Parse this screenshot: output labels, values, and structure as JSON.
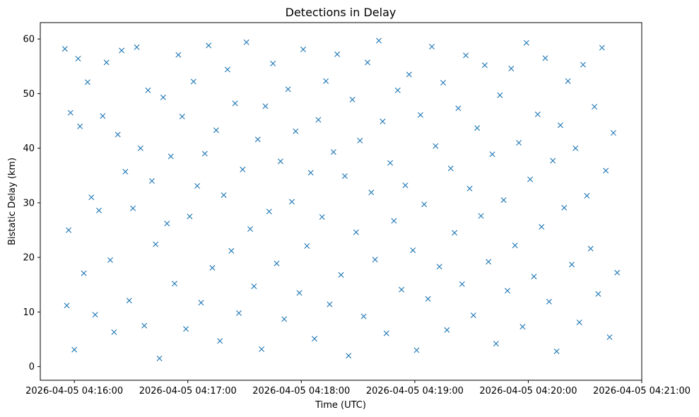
{
  "chart_data": {
    "type": "scatter",
    "title": "Detections in Delay",
    "xlabel": "Time (UTC)",
    "ylabel": "Bistatic Delay (km)",
    "x_type": "datetime",
    "xlim": [
      "2026-04-05 04:15:42",
      "2026-04-05 04:21:00"
    ],
    "ylim": [
      -2.5,
      63
    ],
    "x_ticks": [
      "2026-04-05 04:16:00",
      "2026-04-05 04:17:00",
      "2026-04-05 04:18:00",
      "2026-04-05 04:19:00",
      "2026-04-05 04:20:00",
      "2026-04-05 04:21:00"
    ],
    "y_ticks": [
      0,
      10,
      20,
      30,
      40,
      50,
      60
    ],
    "grid": false,
    "legend": null,
    "marker": "x",
    "color": "#1f77b4",
    "series": [
      {
        "x": [
          "2026-04-05 04:15:55",
          "2026-04-05 04:15:56",
          "2026-04-05 04:15:57",
          "2026-04-05 04:15:58",
          "2026-04-05 04:16:00",
          "2026-04-05 04:16:02",
          "2026-04-05 04:16:03",
          "2026-04-05 04:16:05",
          "2026-04-05 04:16:07",
          "2026-04-05 04:16:09",
          "2026-04-05 04:16:11",
          "2026-04-05 04:16:13",
          "2026-04-05 04:16:15",
          "2026-04-05 04:16:17",
          "2026-04-05 04:16:19",
          "2026-04-05 04:16:21",
          "2026-04-05 04:16:23",
          "2026-04-05 04:16:25",
          "2026-04-05 04:16:27",
          "2026-04-05 04:16:29",
          "2026-04-05 04:16:31",
          "2026-04-05 04:16:33",
          "2026-04-05 04:16:35",
          "2026-04-05 04:16:37",
          "2026-04-05 04:16:39",
          "2026-04-05 04:16:41",
          "2026-04-05 04:16:43",
          "2026-04-05 04:16:45",
          "2026-04-05 04:16:47",
          "2026-04-05 04:16:49",
          "2026-04-05 04:16:51",
          "2026-04-05 04:16:53",
          "2026-04-05 04:16:55",
          "2026-04-05 04:16:57",
          "2026-04-05 04:16:59",
          "2026-04-05 04:17:01",
          "2026-04-05 04:17:03",
          "2026-04-05 04:17:05",
          "2026-04-05 04:17:07",
          "2026-04-05 04:17:09",
          "2026-04-05 04:17:11",
          "2026-04-05 04:17:13",
          "2026-04-05 04:17:15",
          "2026-04-05 04:17:17",
          "2026-04-05 04:17:19",
          "2026-04-05 04:17:21",
          "2026-04-05 04:17:23",
          "2026-04-05 04:17:25",
          "2026-04-05 04:17:27",
          "2026-04-05 04:17:29",
          "2026-04-05 04:17:31",
          "2026-04-05 04:17:33",
          "2026-04-05 04:17:35",
          "2026-04-05 04:17:37",
          "2026-04-05 04:17:39",
          "2026-04-05 04:17:41",
          "2026-04-05 04:17:43",
          "2026-04-05 04:17:45",
          "2026-04-05 04:17:47",
          "2026-04-05 04:17:49",
          "2026-04-05 04:17:51",
          "2026-04-05 04:17:53",
          "2026-04-05 04:17:55",
          "2026-04-05 04:17:57",
          "2026-04-05 04:17:59",
          "2026-04-05 04:18:01",
          "2026-04-05 04:18:03",
          "2026-04-05 04:18:05",
          "2026-04-05 04:18:07",
          "2026-04-05 04:18:09",
          "2026-04-05 04:18:11",
          "2026-04-05 04:18:13",
          "2026-04-05 04:18:15",
          "2026-04-05 04:18:17",
          "2026-04-05 04:18:19",
          "2026-04-05 04:18:21",
          "2026-04-05 04:18:23",
          "2026-04-05 04:18:25",
          "2026-04-05 04:18:27",
          "2026-04-05 04:18:29",
          "2026-04-05 04:18:31",
          "2026-04-05 04:18:33",
          "2026-04-05 04:18:35",
          "2026-04-05 04:18:37",
          "2026-04-05 04:18:39",
          "2026-04-05 04:18:41",
          "2026-04-05 04:18:43",
          "2026-04-05 04:18:45",
          "2026-04-05 04:18:47",
          "2026-04-05 04:18:49",
          "2026-04-05 04:18:51",
          "2026-04-05 04:18:53",
          "2026-04-05 04:18:55",
          "2026-04-05 04:18:57",
          "2026-04-05 04:18:59",
          "2026-04-05 04:19:01",
          "2026-04-05 04:19:03",
          "2026-04-05 04:19:05",
          "2026-04-05 04:19:07",
          "2026-04-05 04:19:09",
          "2026-04-05 04:19:11",
          "2026-04-05 04:19:13",
          "2026-04-05 04:19:15",
          "2026-04-05 04:19:17",
          "2026-04-05 04:19:19",
          "2026-04-05 04:19:21",
          "2026-04-05 04:19:23",
          "2026-04-05 04:19:25",
          "2026-04-05 04:19:27",
          "2026-04-05 04:19:29",
          "2026-04-05 04:19:31",
          "2026-04-05 04:19:33",
          "2026-04-05 04:19:35",
          "2026-04-05 04:19:37",
          "2026-04-05 04:19:39",
          "2026-04-05 04:19:41",
          "2026-04-05 04:19:43",
          "2026-04-05 04:19:45",
          "2026-04-05 04:19:47",
          "2026-04-05 04:19:49",
          "2026-04-05 04:19:51",
          "2026-04-05 04:19:53",
          "2026-04-05 04:19:55",
          "2026-04-05 04:19:57",
          "2026-04-05 04:19:59",
          "2026-04-05 04:20:01",
          "2026-04-05 04:20:03",
          "2026-04-05 04:20:05",
          "2026-04-05 04:20:07",
          "2026-04-05 04:20:09",
          "2026-04-05 04:20:11",
          "2026-04-05 04:20:13",
          "2026-04-05 04:20:15",
          "2026-04-05 04:20:17",
          "2026-04-05 04:20:19",
          "2026-04-05 04:20:21",
          "2026-04-05 04:20:23",
          "2026-04-05 04:20:25",
          "2026-04-05 04:20:27",
          "2026-04-05 04:20:29",
          "2026-04-05 04:20:31",
          "2026-04-05 04:20:33",
          "2026-04-05 04:20:35",
          "2026-04-05 04:20:37",
          "2026-04-05 04:20:39",
          "2026-04-05 04:20:41",
          "2026-04-05 04:20:43",
          "2026-04-05 04:20:45",
          "2026-04-05 04:20:47"
        ],
        "y": [
          58.2,
          11.2,
          25.0,
          46.5,
          3.1,
          56.4,
          44.0,
          17.1,
          52.1,
          31.0,
          9.5,
          28.6,
          45.9,
          55.7,
          19.5,
          6.3,
          42.5,
          57.9,
          35.7,
          12.1,
          29.0,
          58.5,
          40.0,
          7.5,
          50.6,
          34.0,
          22.4,
          1.5,
          49.3,
          26.2,
          38.5,
          15.2,
          57.1,
          45.8,
          6.9,
          27.5,
          52.2,
          33.1,
          11.7,
          39.0,
          58.8,
          18.1,
          43.3,
          4.7,
          31.4,
          54.4,
          21.2,
          48.2,
          9.8,
          36.1,
          59.4,
          25.2,
          14.7,
          41.6,
          3.2,
          47.7,
          28.4,
          55.5,
          18.9,
          37.6,
          8.7,
          50.8,
          30.2,
          43.1,
          13.5,
          58.1,
          22.1,
          35.5,
          5.1,
          45.2,
          27.4,
          52.3,
          11.4,
          39.3,
          57.2,
          16.8,
          34.9,
          2.0,
          48.9,
          24.6,
          41.4,
          9.2,
          55.7,
          31.9,
          19.6,
          59.7,
          44.9,
          6.1,
          37.3,
          26.7,
          50.6,
          14.1,
          33.2,
          53.5,
          21.3,
          3.0,
          46.1,
          29.7,
          12.4,
          58.6,
          40.4,
          18.3,
          52.0,
          6.7,
          36.3,
          24.5,
          47.3,
          15.1,
          57.0,
          32.6,
          9.4,
          43.7,
          27.6,
          55.2,
          19.2,
          38.9,
          4.2,
          49.7,
          30.5,
          13.9,
          54.6,
          22.2,
          41.0,
          7.3,
          59.3,
          34.3,
          16.5,
          46.2,
          25.6,
          56.5,
          11.9,
          37.7,
          2.8,
          44.2,
          29.1,
          52.3,
          18.7,
          40.0,
          8.1,
          55.3,
          31.3,
          21.6,
          47.6,
          13.3,
          58.4,
          35.9,
          5.4,
          42.8,
          17.2
        ]
      }
    ]
  }
}
